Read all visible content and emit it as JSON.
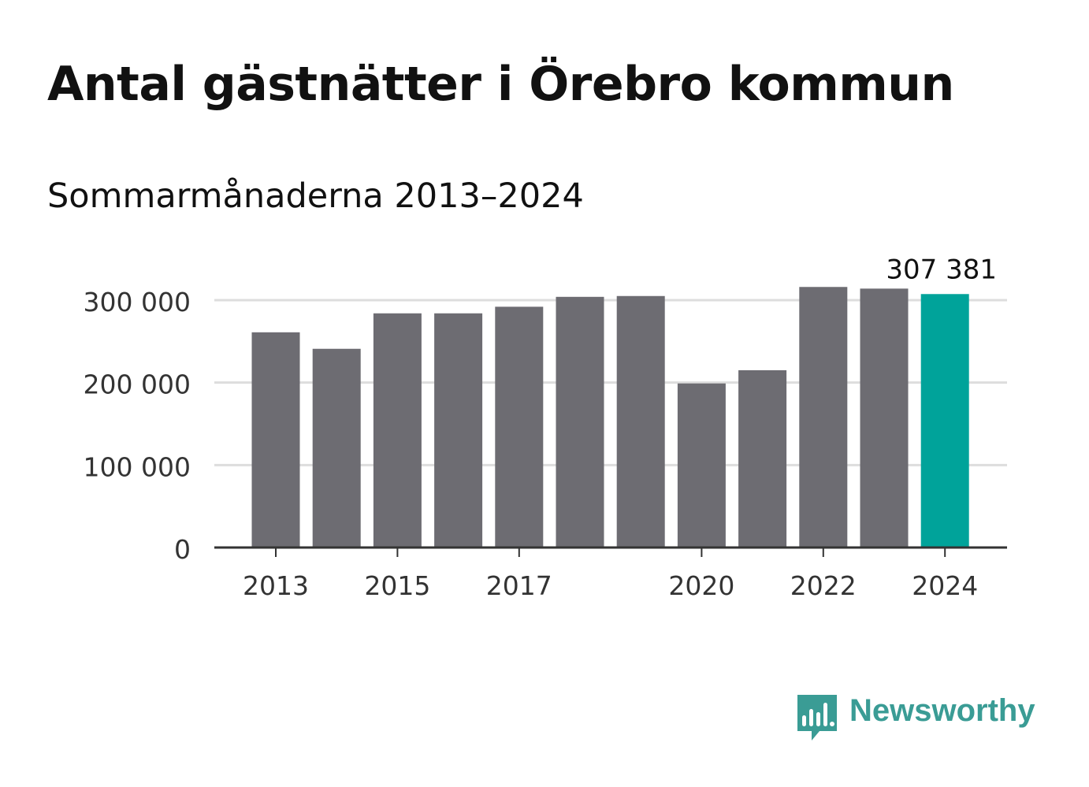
{
  "title": "Antal gästnätter i Örebro kommun",
  "subtitle": "Sommarmånaderna 2013–2024",
  "brand": {
    "name": "Newsworthy",
    "icon": "newsworthy-logo-icon",
    "color": "#3a9c95"
  },
  "chart_data": {
    "type": "bar",
    "title": "Antal gästnätter i Örebro kommun",
    "subtitle": "Sommarmånaderna 2013–2024",
    "xlabel": "",
    "ylabel": "",
    "categories": [
      "2013",
      "2014",
      "2015",
      "2016",
      "2017",
      "2018",
      "2019",
      "2020",
      "2021",
      "2022",
      "2023",
      "2024"
    ],
    "x_tick_labels": [
      "2013",
      "",
      "2015",
      "",
      "2017",
      "",
      "",
      "2020",
      "",
      "2022",
      "",
      "2024"
    ],
    "values": [
      261000,
      241000,
      284000,
      284000,
      292000,
      304000,
      305000,
      199000,
      215000,
      316000,
      314000,
      307381
    ],
    "ylim": [
      0,
      300000
    ],
    "y_ticks": [
      0,
      100000,
      200000,
      300000
    ],
    "y_tick_labels": [
      "0",
      "100 000",
      "200 000",
      "300 000"
    ],
    "highlight_index": 11,
    "highlight_label": "307 381",
    "colors": {
      "bar": "#6d6c72",
      "highlight": "#00a39a",
      "grid": "#dddddd",
      "axis": "#333333"
    },
    "grid": true,
    "legend": "none"
  }
}
